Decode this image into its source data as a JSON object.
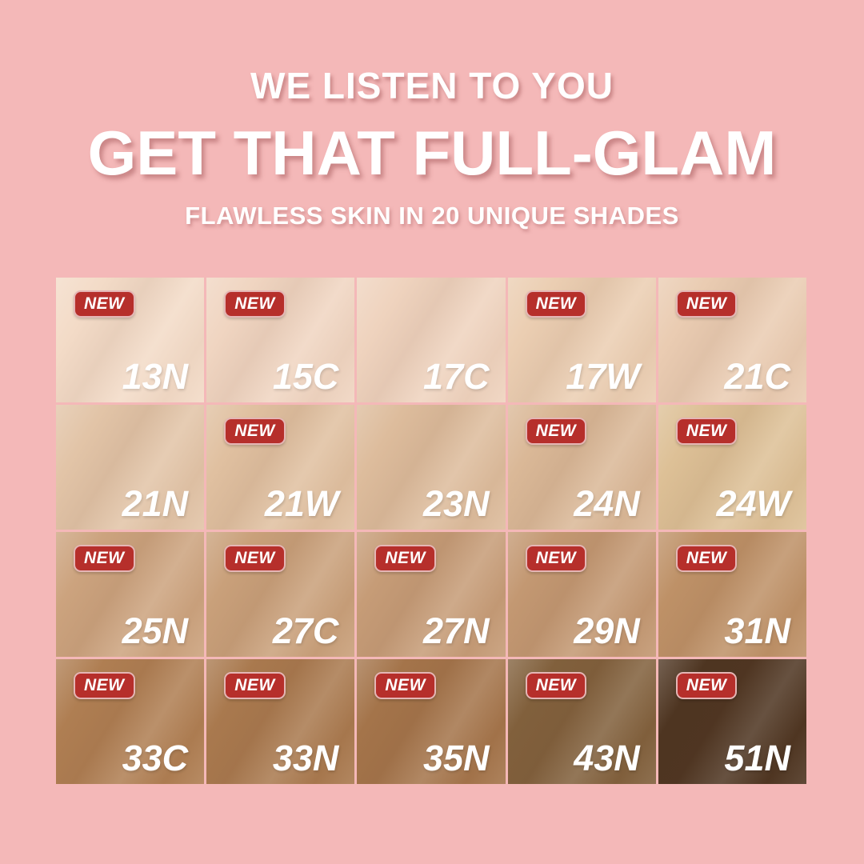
{
  "header": {
    "tagline": "WE LISTEN TO YOU",
    "title": "GET THAT FULL-GLAM",
    "subtitle": "FLAWLESS SKIN IN 20 UNIQUE SHADES"
  },
  "colors": {
    "background": "#F4B8B8",
    "badge_red": "#B62F2B",
    "header_text": "#FFFFFF"
  },
  "grid": {
    "badge_label": "NEW",
    "columns": 5,
    "rows": 4,
    "shades": [
      {
        "label": "13N",
        "new": true,
        "color": "#F3DBC7"
      },
      {
        "label": "15C",
        "new": true,
        "color": "#F0D5C1"
      },
      {
        "label": "17C",
        "new": false,
        "color": "#EFD3BE"
      },
      {
        "label": "17W",
        "new": true,
        "color": "#EBCEB2"
      },
      {
        "label": "21C",
        "new": true,
        "color": "#EACCB2"
      },
      {
        "label": "21N",
        "new": false,
        "color": "#E2C4A7"
      },
      {
        "label": "21W",
        "new": true,
        "color": "#E0C0A0"
      },
      {
        "label": "23N",
        "new": false,
        "color": "#DDBC9C"
      },
      {
        "label": "24N",
        "new": true,
        "color": "#DAB897"
      },
      {
        "label": "24W",
        "new": true,
        "color": "#DDC096"
      },
      {
        "label": "25N",
        "new": true,
        "color": "#CCA37E"
      },
      {
        "label": "27C",
        "new": true,
        "color": "#C9A07A"
      },
      {
        "label": "27N",
        "new": true,
        "color": "#C69C77"
      },
      {
        "label": "29N",
        "new": true,
        "color": "#C39872"
      },
      {
        "label": "31N",
        "new": true,
        "color": "#BE9167"
      },
      {
        "label": "33C",
        "new": true,
        "color": "#AF7E52"
      },
      {
        "label": "33N",
        "new": true,
        "color": "#A9794E"
      },
      {
        "label": "35N",
        "new": true,
        "color": "#A4744A"
      },
      {
        "label": "43N",
        "new": true,
        "color": "#81603C"
      },
      {
        "label": "51N",
        "new": true,
        "color": "#4E3521"
      }
    ]
  }
}
